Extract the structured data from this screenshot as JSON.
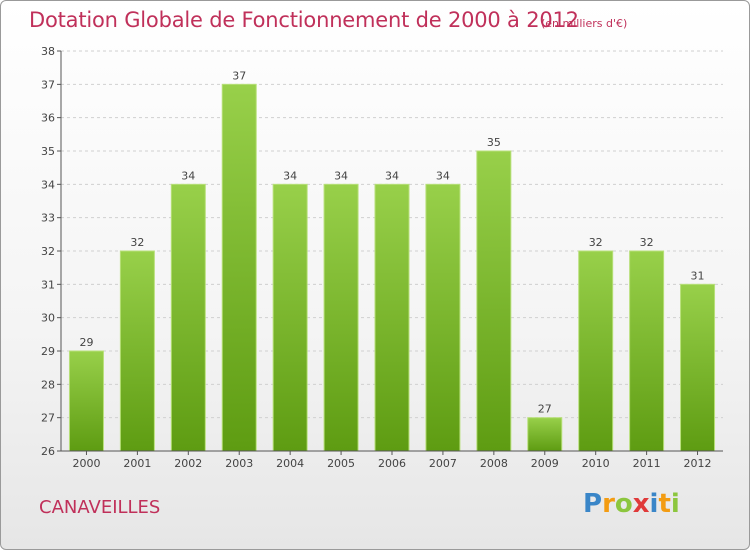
{
  "title": "Dotation Globale de Fonctionnement de 2000 à 2012",
  "unit": "(en milliers d'€)",
  "commune": "CANAVEILLES",
  "brand": {
    "name": "Proxiti",
    "letters": [
      {
        "ch": "P",
        "color": "#3a86c8"
      },
      {
        "ch": "r",
        "color": "#f39c12"
      },
      {
        "ch": "o",
        "color": "#8cc63e"
      },
      {
        "ch": "x",
        "color": "#e03a3a"
      },
      {
        "ch": "i",
        "color": "#3a86c8"
      },
      {
        "ch": "t",
        "color": "#f39c12"
      },
      {
        "ch": "i",
        "color": "#8cc63e"
      }
    ]
  },
  "colors": {
    "accent": "#c0305a",
    "bar_top": "#98d04a",
    "bar_bottom": "#5e9c12",
    "grid": "#d0d0d0",
    "axis": "#555555"
  },
  "chart_data": {
    "type": "bar",
    "categories": [
      "2000",
      "2001",
      "2002",
      "2003",
      "2004",
      "2005",
      "2006",
      "2007",
      "2008",
      "2009",
      "2010",
      "2011",
      "2012"
    ],
    "values": [
      29,
      32,
      34,
      37,
      34,
      34,
      34,
      34,
      35,
      27,
      32,
      32,
      31
    ],
    "ylim": [
      26,
      38
    ],
    "yticks": [
      26,
      27,
      28,
      29,
      30,
      31,
      32,
      33,
      34,
      35,
      36,
      37,
      38
    ],
    "grid": true,
    "data_labels": true
  }
}
